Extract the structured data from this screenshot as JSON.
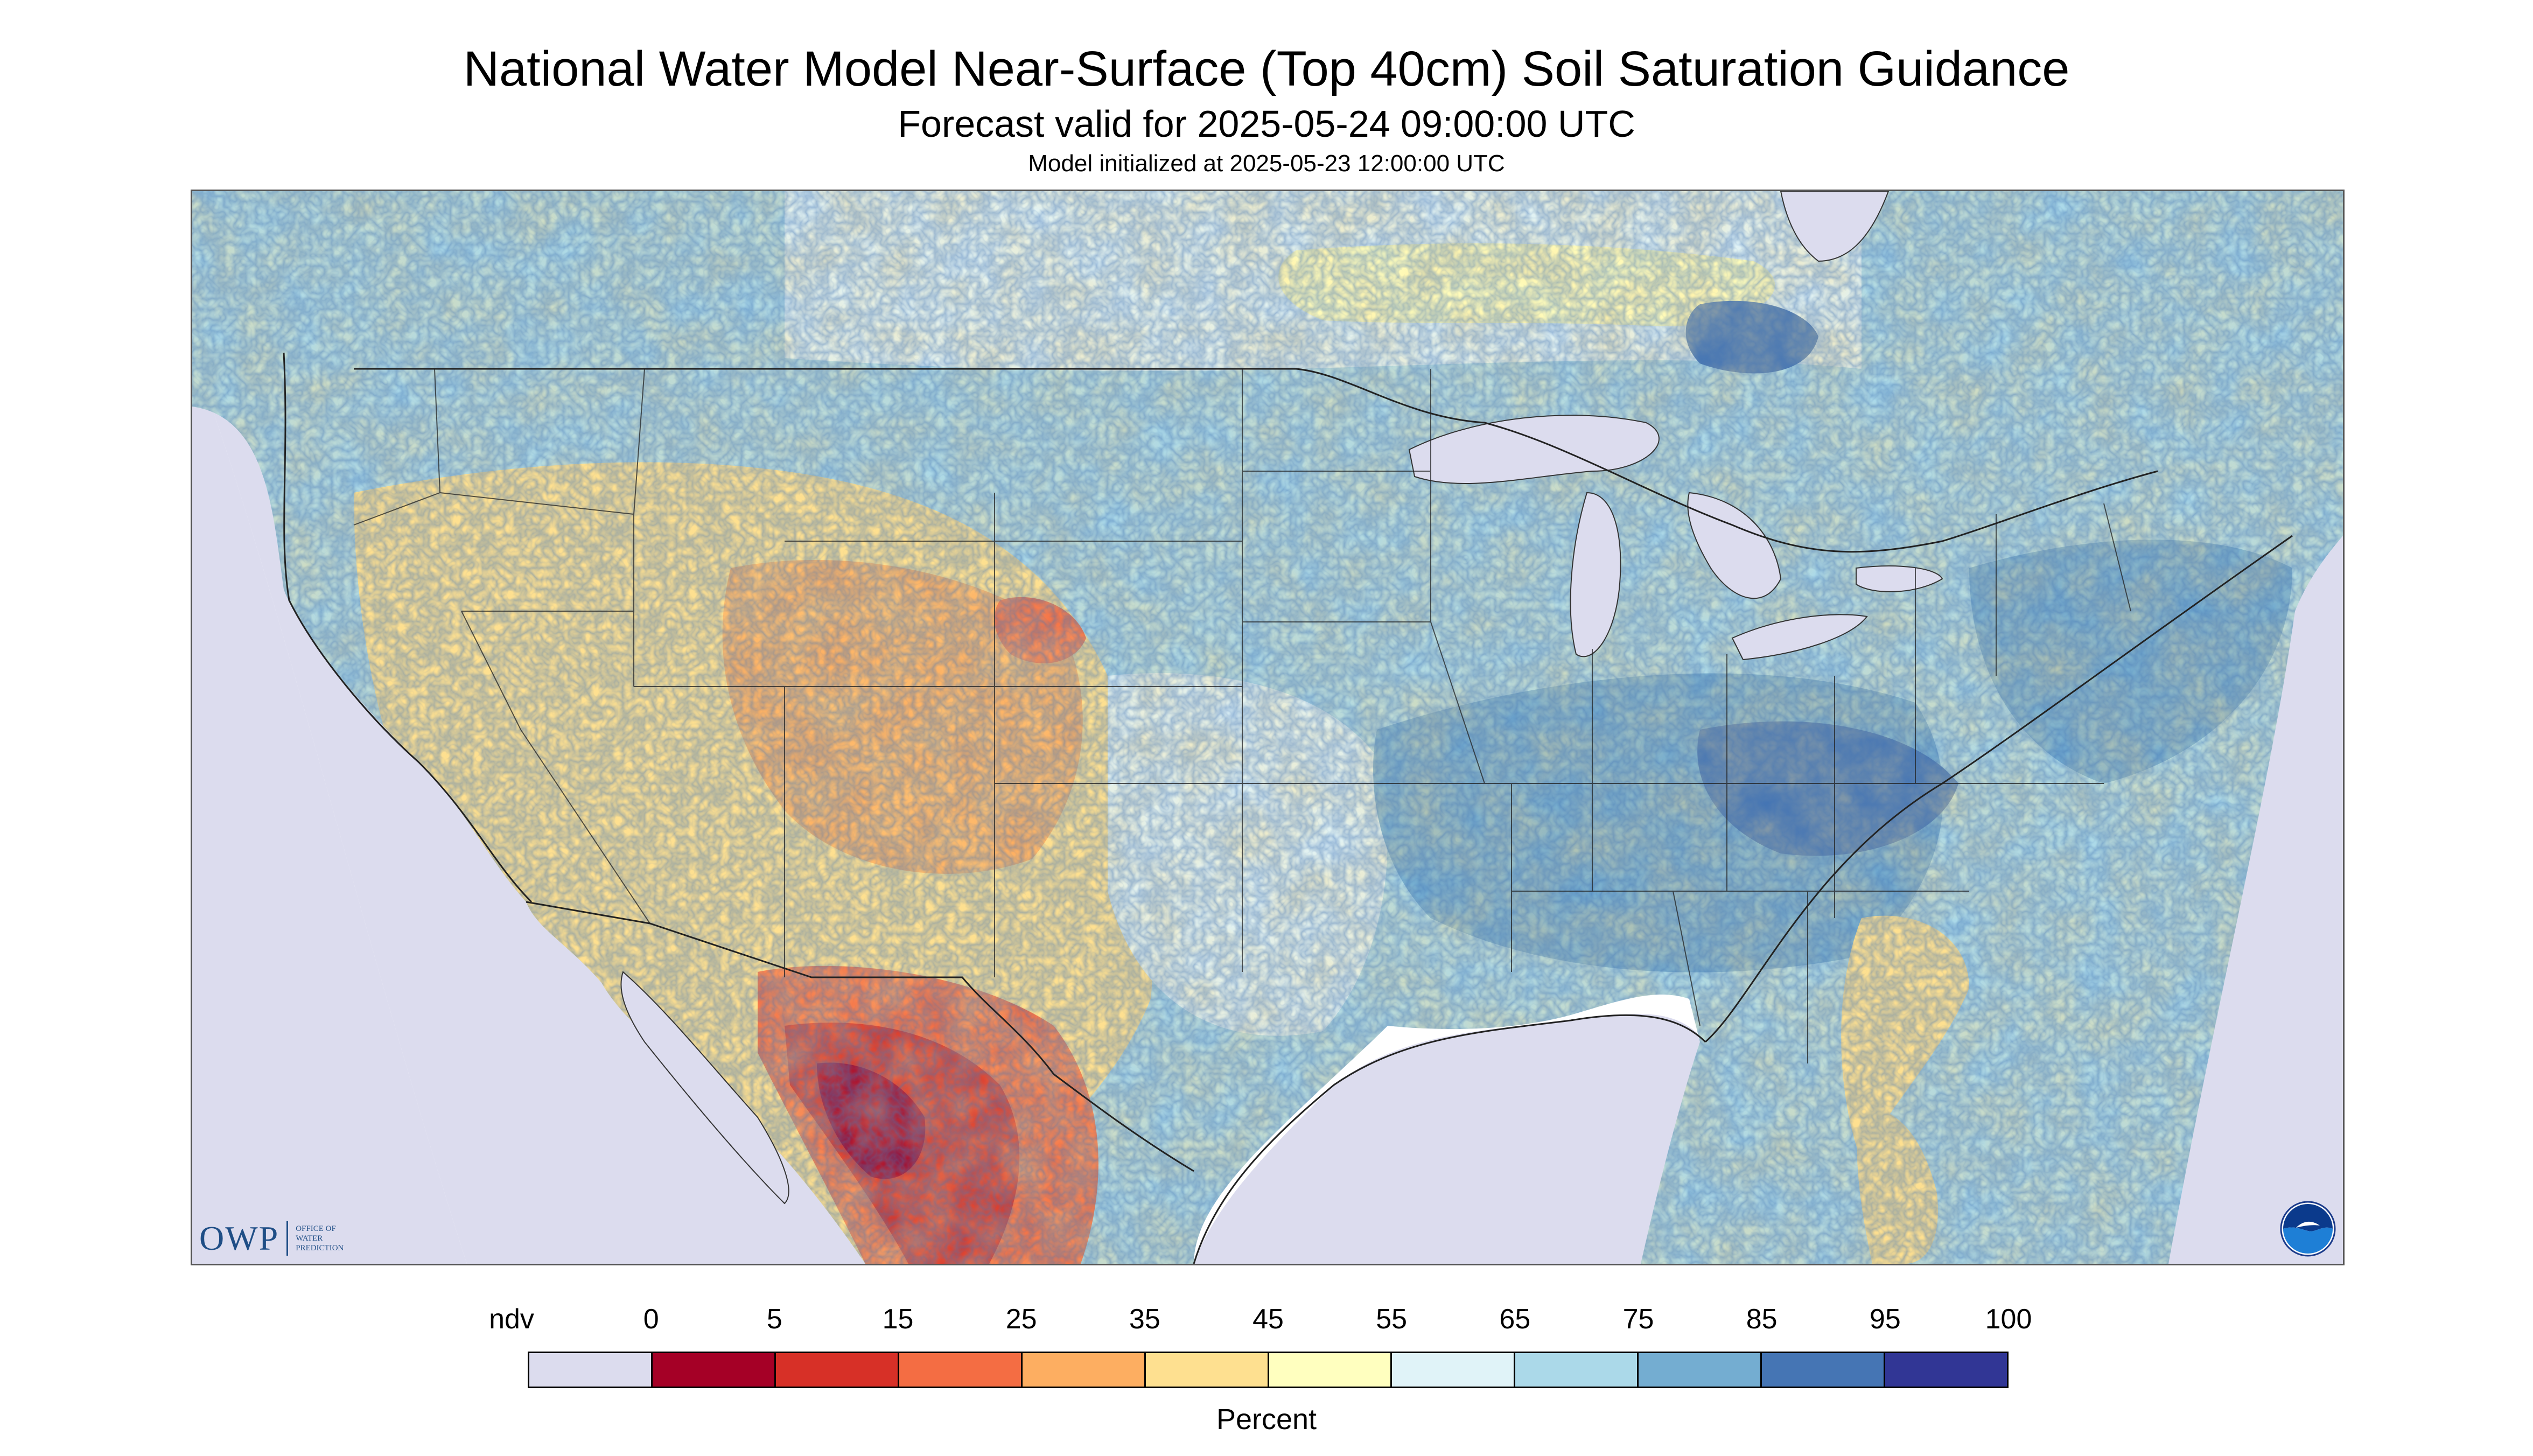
{
  "header": {
    "title": "National Water Model Near-Surface (Top 40cm) Soil Saturation Guidance",
    "subtitle": "Forecast valid for 2025-05-24 09:00:00 UTC",
    "initialized": "Model initialized at 2025-05-23 12:00:00 UTC"
  },
  "logos": {
    "owp_text": "OWP",
    "owp_subtext": [
      "OFFICE OF",
      "WATER",
      "PREDICTION"
    ],
    "owp_icon": "owp-logo",
    "noaa_icon": "noaa-logo"
  },
  "legend": {
    "title": "Percent",
    "labels": [
      "ndv",
      "0",
      "5",
      "15",
      "25",
      "35",
      "45",
      "55",
      "65",
      "75",
      "85",
      "95",
      "100"
    ],
    "colors": [
      "#dcdcee",
      "#a50026",
      "#d73027",
      "#f46d43",
      "#fdae61",
      "#fee090",
      "#ffffbf",
      "#e0f3f8",
      "#abd9e9",
      "#74add1",
      "#4575b4",
      "#313695"
    ]
  },
  "map": {
    "colors": {
      "nodata": "#dcdcee",
      "water": "#dcdcee",
      "very_dry": "#a50026",
      "dry": "#d73027",
      "dry_moderate": "#f46d43",
      "moderate_dry": "#fdae61",
      "moderate": "#fee090",
      "neutral": "#ffffbf",
      "moist_light": "#e0f3f8",
      "moist": "#abd9e9",
      "wet": "#74add1",
      "very_wet": "#4575b4",
      "saturated": "#313695"
    }
  }
}
